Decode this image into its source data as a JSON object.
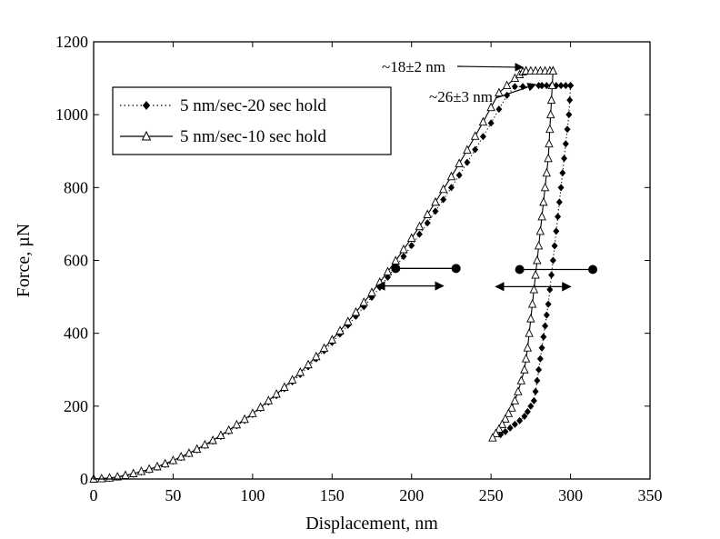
{
  "chart_data": {
    "type": "line",
    "title": "",
    "xlabel": "Displacement, nm",
    "ylabel": "Force, µN",
    "xlim": [
      0,
      350
    ],
    "ylim": [
      0,
      1200
    ],
    "xticks": [
      0,
      50,
      100,
      150,
      200,
      250,
      300,
      350
    ],
    "yticks": [
      0,
      200,
      400,
      600,
      800,
      1000,
      1200
    ],
    "grid": false,
    "legend_position": "upper-left",
    "series": [
      {
        "name": "5 nm/sec-20 sec hold",
        "line_style": "dotted",
        "marker": "filled-diamond",
        "color": "#000000",
        "loading": {
          "x": [
            0,
            5,
            10,
            15,
            20,
            25,
            30,
            35,
            40,
            45,
            50,
            55,
            60,
            65,
            70,
            75,
            80,
            85,
            90,
            95,
            100,
            105,
            110,
            115,
            120,
            125,
            130,
            135,
            140,
            145,
            150,
            155,
            160,
            165,
            170,
            175,
            180,
            185,
            190,
            195,
            200,
            205,
            210,
            215,
            220,
            225,
            230,
            235,
            240,
            245,
            250,
            255,
            260,
            265,
            270,
            275,
            280,
            282
          ],
          "y": [
            0,
            1,
            2,
            5,
            9,
            13,
            19,
            25,
            32,
            40,
            49,
            59,
            69,
            80,
            92,
            104,
            117,
            131,
            146,
            161,
            177,
            194,
            211,
            229,
            248,
            267,
            287,
            308,
            330,
            352,
            375,
            398,
            422,
            447,
            473,
            499,
            526,
            554,
            582,
            611,
            641,
            672,
            703,
            735,
            767,
            800,
            834,
            869,
            904,
            940,
            977,
            1015,
            1053,
            1077,
            1077,
            1077,
            1080,
            1080
          ]
        },
        "hold": {
          "x": [
            282,
            285,
            288,
            291,
            294,
            297,
            300
          ],
          "y": [
            1080,
            1080,
            1080,
            1080,
            1080,
            1080,
            1080
          ]
        },
        "unloading": {
          "x": [
            300,
            299.5,
            299,
            298,
            297,
            296,
            295,
            294,
            293,
            292,
            291,
            290,
            289,
            288,
            287,
            286,
            285,
            284,
            283,
            282,
            281,
            280,
            279,
            278,
            277,
            275,
            273,
            271,
            268,
            265,
            262,
            259,
            256
          ],
          "y": [
            1080,
            1040,
            1000,
            960,
            920,
            880,
            840,
            800,
            760,
            720,
            680,
            640,
            600,
            560,
            520,
            480,
            450,
            420,
            390,
            360,
            330,
            300,
            270,
            240,
            215,
            200,
            185,
            172,
            160,
            150,
            140,
            130,
            122
          ]
        }
      },
      {
        "name": "5 nm/sec-10 sec hold",
        "line_style": "solid",
        "marker": "open-triangle",
        "color": "#000000",
        "loading": {
          "x": [
            0,
            5,
            10,
            15,
            20,
            25,
            30,
            35,
            40,
            45,
            50,
            55,
            60,
            65,
            70,
            75,
            80,
            85,
            90,
            95,
            100,
            105,
            110,
            115,
            120,
            125,
            130,
            135,
            140,
            145,
            150,
            155,
            160,
            165,
            170,
            175,
            180,
            185,
            190,
            195,
            200,
            205,
            210,
            215,
            220,
            225,
            230,
            235,
            240,
            245,
            250,
            255,
            260,
            265,
            268,
            270,
            272
          ],
          "y": [
            0,
            1,
            3,
            6,
            10,
            15,
            21,
            27,
            34,
            42,
            51,
            61,
            71,
            82,
            94,
            106,
            120,
            134,
            149,
            164,
            180,
            197,
            215,
            233,
            252,
            272,
            293,
            314,
            336,
            359,
            382,
            407,
            432,
            458,
            485,
            512,
            540,
            569,
            599,
            630,
            661,
            693,
            726,
            760,
            795,
            830,
            866,
            903,
            941,
            980,
            1020,
            1060,
            1080,
            1100,
            1110,
            1118,
            1120
          ]
        },
        "hold": {
          "x": [
            272,
            275,
            278,
            281,
            284,
            287,
            289
          ],
          "y": [
            1120,
            1120,
            1120,
            1120,
            1120,
            1120,
            1120
          ]
        },
        "unloading": {
          "x": [
            289,
            288.5,
            288,
            287.5,
            287,
            286.5,
            286,
            285,
            284,
            283,
            282,
            281,
            280,
            279,
            278,
            277,
            276,
            275,
            274,
            273,
            272,
            271,
            269,
            267,
            265,
            263,
            261,
            259,
            257,
            255,
            253,
            251
          ],
          "y": [
            1120,
            1080,
            1040,
            1000,
            960,
            920,
            880,
            840,
            800,
            760,
            720,
            680,
            640,
            600,
            560,
            520,
            480,
            440,
            400,
            360,
            330,
            300,
            270,
            240,
            215,
            195,
            180,
            165,
            150,
            137,
            125,
            113
          ]
        }
      }
    ],
    "annotations": [
      {
        "text": "~18±2 nm",
        "arrow_to": [
          270,
          1130
        ]
      },
      {
        "text": "~26±3 nm",
        "arrow_to": [
          278,
          1083
        ]
      }
    ],
    "double_arrows": [
      {
        "series": "5 nm/sec-20 sec hold",
        "y": 578,
        "x": [
          190,
          228
        ]
      },
      {
        "series": "5 nm/sec-10 sec hold",
        "y": 530,
        "x": [
          178,
          220
        ]
      },
      {
        "series": "5 nm/sec-20 sec hold",
        "y": 575,
        "x": [
          268,
          314
        ]
      },
      {
        "series": "5 nm/sec-10 sec hold",
        "y": 528,
        "x": [
          253,
          300
        ]
      }
    ]
  }
}
